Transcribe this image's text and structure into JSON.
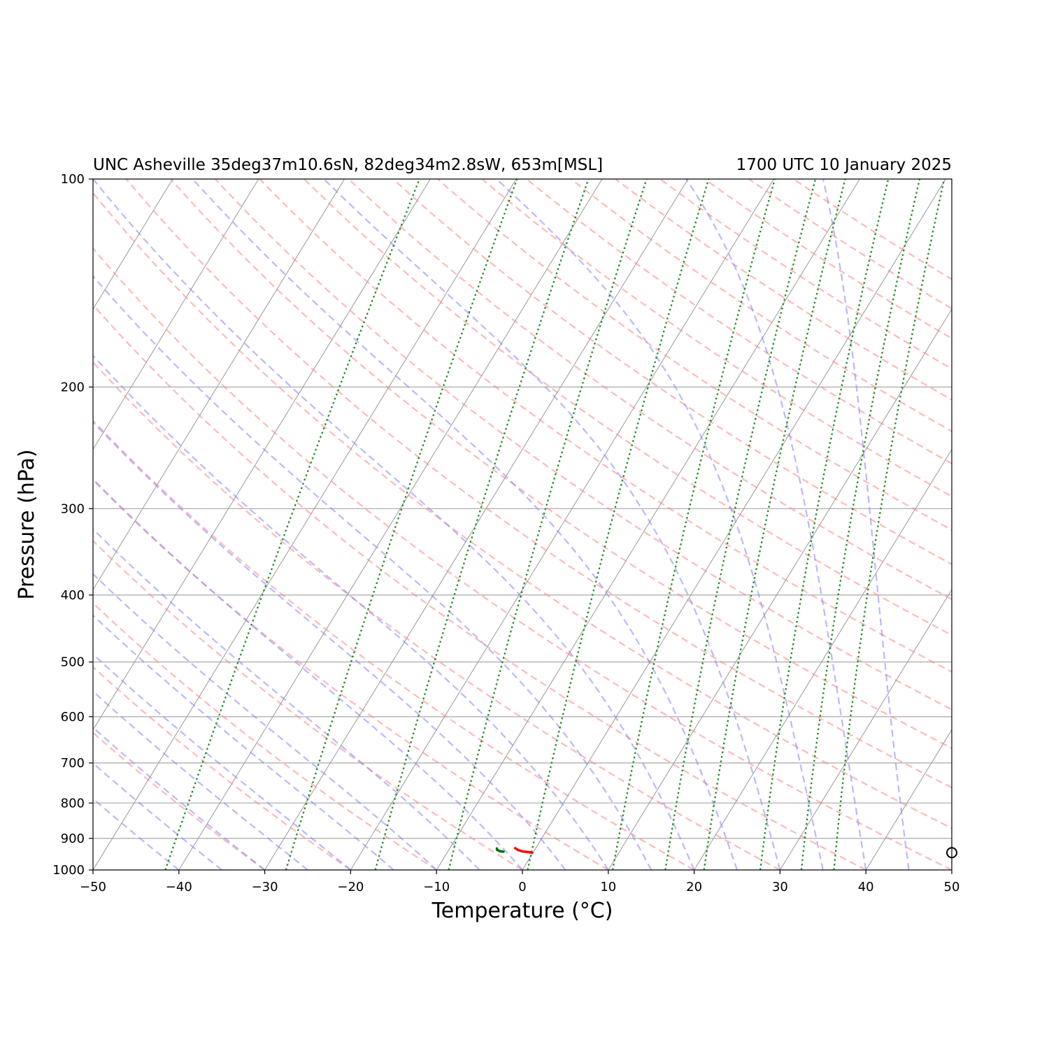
{
  "chart_data": {
    "type": "skew-t",
    "title_left": "UNC Asheville 35deg37m10.6sN, 82deg34m2.8sW, 653m[MSL]",
    "title_right": "1700 UTC 10 January 2025",
    "xlabel": "Temperature (°C)",
    "ylabel": "Pressure (hPa)",
    "xlim": [
      -50,
      50
    ],
    "ylim": [
      1000,
      100
    ],
    "y_scale": "log",
    "x_ticks": [
      -50,
      -40,
      -30,
      -20,
      -10,
      0,
      10,
      20,
      30,
      40,
      50
    ],
    "x_tick_labels": [
      "−50",
      "−40",
      "−30",
      "−20",
      "−10",
      "0",
      "10",
      "20",
      "30",
      "40",
      "50"
    ],
    "y_ticks": [
      1000,
      900,
      800,
      700,
      600,
      500,
      400,
      300,
      200,
      100
    ],
    "y_tick_labels": [
      "1000",
      "900",
      "800",
      "700",
      "600",
      "500",
      "400",
      "300",
      "200",
      "100"
    ],
    "grid": true,
    "colors": {
      "temperature": "#ff0000",
      "dewpoint": "#007000",
      "dry_adiabats": "#ff8080",
      "moist_adiabats": "#8080ff",
      "mixing_ratio": "#228b22",
      "isotherms": "#999999",
      "isobars": "#b0b0b0"
    },
    "temperature": {
      "p": [
        930,
        936,
        940,
        942,
        944
      ],
      "t": [
        -2.4,
        -1.9,
        -1.3,
        -0.6,
        -0.1
      ]
    },
    "dewpoint": {
      "p": [
        931,
        935,
        939,
        941
      ],
      "td": [
        -4.5,
        -4.4,
        -4.0,
        -3.5
      ]
    },
    "surface_marker": {
      "p": 944,
      "t": 50
    },
    "isotherm_values": [
      -140,
      -130,
      -120,
      -110,
      -100,
      -90,
      -80,
      -70,
      -60,
      -50,
      -40,
      -30,
      -20,
      -10,
      0,
      10,
      20,
      30,
      40,
      50
    ],
    "dry_adiabat_thetas": [
      -30,
      -20,
      -10,
      0,
      10,
      20,
      30,
      40,
      50,
      60,
      70,
      80,
      90,
      100,
      110,
      120,
      130,
      140,
      150,
      160,
      170,
      180,
      190,
      200,
      210,
      220
    ],
    "moist_adiabat_thetaw": [
      -40,
      -35,
      -30,
      -25,
      -20,
      -15,
      -10,
      -5,
      0,
      5,
      10,
      15,
      20,
      25,
      30,
      35,
      40,
      45
    ],
    "mixing_ratio_values": [
      0.0001,
      0.0004,
      0.001,
      0.002,
      0.004,
      0.008,
      0.012,
      0.016,
      0.024,
      0.032,
      0.04
    ]
  }
}
